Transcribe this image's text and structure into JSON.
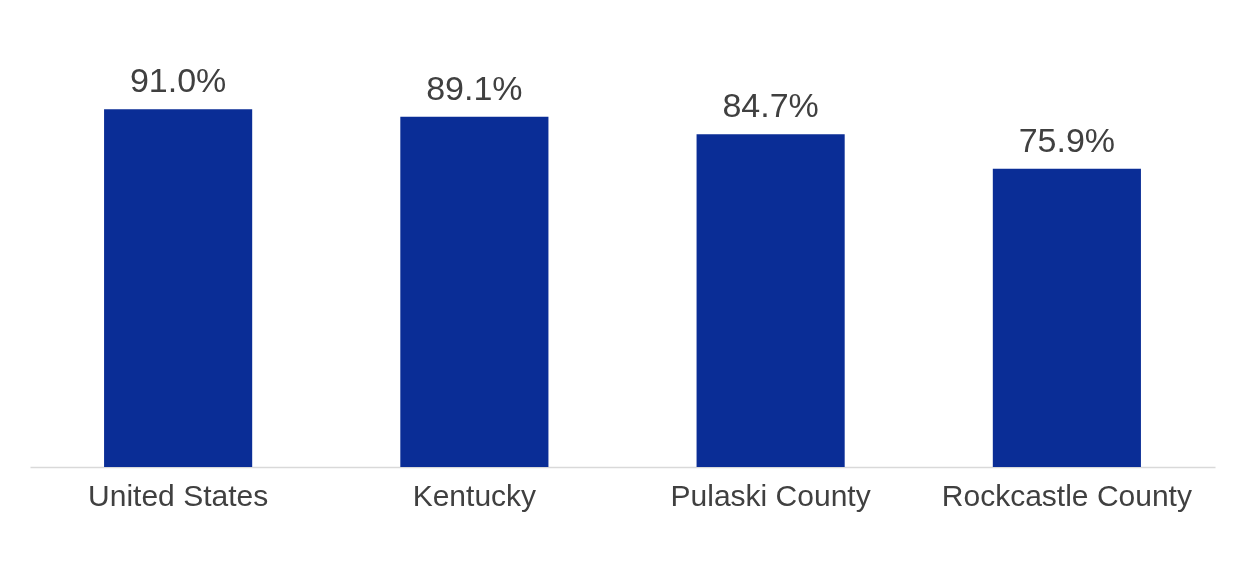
{
  "chart_data": {
    "type": "bar",
    "categories": [
      "United States",
      "Kentucky",
      "Pulaski County",
      "Rockcastle County"
    ],
    "values": [
      91.0,
      89.1,
      84.7,
      75.9
    ],
    "value_labels": [
      "91.0%",
      "89.1%",
      "84.7%",
      "75.9%"
    ],
    "color": "#0a2d96"
  }
}
